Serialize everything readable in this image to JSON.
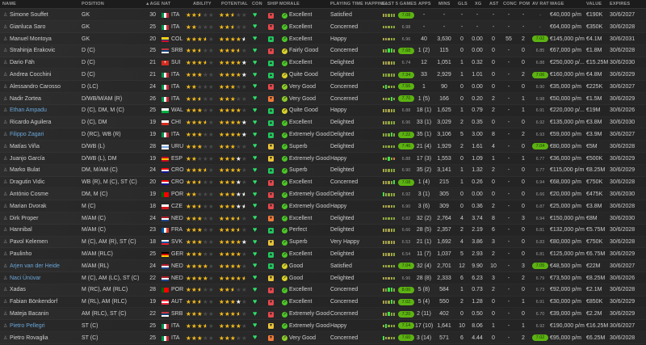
{
  "headers": {
    "name": "NAME",
    "position": "POSITION",
    "age": "▲AGE",
    "nat": "NAT",
    "ability": "ABILITY",
    "potential": "POTENTIAL",
    "con": "CON",
    "ship": "SHIP",
    "morale": "MORALE",
    "playing_time": "PLAYING TIME HAPPINE...",
    "last5": "LAST 5 GAMES",
    "apps": "APPS",
    "mins": "MINS",
    "gls": "GLS",
    "xg": "XG",
    "ast": "AST",
    "conc": "CONC",
    "pom": "POM",
    "avrat": "AV RAT",
    "wage": "WAGE",
    "value": "VALUE",
    "expires": "EXPIRES"
  },
  "colors": {
    "ship": {
      "green": "#22c55e",
      "red": "#e5484d",
      "orange": "#f07a3a",
      "yellow": "#e8c43a"
    },
    "morale": {
      "Excellent": "#4cc726",
      "Superb": "#4cc726",
      "Extremely Good": "#4cc726",
      "Perfect": "#4cc726",
      "Very Good": "#8fce2a",
      "Quite Good": "#d9d22a",
      "Good": "#d9d22a",
      "Fairly Good": "#d9d22a"
    },
    "star_gold": "#f2b816",
    "star_white": "#f0f0f0"
  },
  "players": [
    {
      "name": "Simone Souffet",
      "position": "GK",
      "age": "30",
      "nat": "ITA",
      "ability": 2.5,
      "potential": [
        2.5,
        2.5
      ],
      "ship": "red",
      "morale": "Excellent",
      "playing_time": "Satisfied",
      "form": "yyggg",
      "rating": "7.08",
      "apps": "-",
      "mins": "-",
      "gls": "-",
      "xg": "-",
      "ast": "-",
      "conc": "-",
      "pom": "-",
      "avrat": "-",
      "wage": "€40,000 p/m",
      "value": "€190K",
      "expires": "30/6/2027"
    },
    {
      "name": "Gianluca Saro",
      "position": "GK",
      "age": "25",
      "nat": "ITA",
      "ability": 2,
      "potential": [
        2.5,
        2.5
      ],
      "ship": "red",
      "morale": "Excellent",
      "playing_time": "Concerned",
      "form": "gyggg",
      "rating": "6.98",
      "apps": "-",
      "mins": "-",
      "gls": "-",
      "xg": "-",
      "ast": "-",
      "conc": "-",
      "pom": "-",
      "avrat": "-",
      "wage": "€64,000 p/m",
      "value": "€350K",
      "expires": "30/6/2028"
    },
    {
      "name": "Manuel Montoya",
      "position": "GK",
      "age": "20",
      "nat": "COL",
      "ability": 3.5,
      "potential": [
        4,
        4.5
      ],
      "ship": "green",
      "morale": "Excellent",
      "playing_time": "Happy",
      "form": "yyygg",
      "rating": "6.96",
      "apps": "40",
      "mins": "3,630",
      "gls": "0",
      "xg": "0.00",
      "ast": "0",
      "conc": "55",
      "pom": "2",
      "avrat": "7.02",
      "wage": "€145,000 p/m",
      "value": "€4.1M",
      "expires": "30/6/2031"
    },
    {
      "name": "Strahinja Erakovic",
      "position": "D (C)",
      "age": "25",
      "nat": "SRB",
      "ability": 2.5,
      "potential": [
        3.5,
        3.5
      ],
      "ship": "red",
      "morale": "Fairly Good",
      "playing_time": "Concerned",
      "form": "ggGGg",
      "rating": "7.68",
      "apps": "1 (2)",
      "mins": "115",
      "gls": "0",
      "xg": "0.00",
      "ast": "0",
      "conc": "-",
      "pom": "0",
      "avrat": "6.85",
      "wage": "€67,000 p/m",
      "value": "€1.8M",
      "expires": "30/6/2028"
    },
    {
      "name": "Dario Fäh",
      "position": "D (C)",
      "age": "21",
      "nat": "SUI",
      "ability": 3.5,
      "potential": [
        4,
        5
      ],
      "ship": "green",
      "morale": "Excellent",
      "playing_time": "Delighted",
      "form": "yyyyg",
      "rating": "6.74",
      "apps": "12",
      "mins": "1,051",
      "gls": "1",
      "xg": "0.32",
      "ast": "0",
      "conc": "-",
      "pom": "0",
      "avrat": "6.88",
      "wage": "€250,000 p/...",
      "value": "€15.25M",
      "expires": "30/6/2030"
    },
    {
      "name": "Andrea Cocchini",
      "position": "D (C)",
      "age": "21",
      "nat": "ITA",
      "ability": 3,
      "potential": [
        4,
        5
      ],
      "ship": "green",
      "morale": "Quite Good",
      "playing_time": "Delighted",
      "form": "ggggg",
      "rating": "7.34",
      "apps": "33",
      "mins": "2,929",
      "gls": "1",
      "xg": "1.01",
      "ast": "0",
      "conc": "-",
      "pom": "2",
      "avrat": "7.06",
      "wage": "€160,000 p/m",
      "value": "€4.8M",
      "expires": "30/6/2029"
    },
    {
      "name": "Alessandro Carosso",
      "position": "D (LC)",
      "age": "24",
      "nat": "ITA",
      "ability": 2,
      "potential": [
        3,
        3
      ],
      "ship": "red",
      "morale": "Very Good",
      "playing_time": "Concerned",
      "form": "gGggg",
      "rating": "7.56",
      "apps": "1",
      "mins": "90",
      "gls": "0",
      "xg": "0.00",
      "ast": "0",
      "conc": "-",
      "pom": "0",
      "avrat": "6.90",
      "wage": "€35,000 p/m",
      "value": "€225K",
      "expires": "30/6/2027"
    },
    {
      "name": "Nadir Zortea",
      "position": "D/WB/M/AM (R)",
      "age": "26",
      "nat": "ITA",
      "ability": 2.5,
      "potential": [
        3,
        3
      ],
      "ship": "orange",
      "morale": "Very Good",
      "playing_time": "Concerned",
      "form": "yggGg",
      "rating": "7.70",
      "apps": "1 (5)",
      "mins": "166",
      "gls": "0",
      "xg": "0.20",
      "ast": "2",
      "conc": "-",
      "pom": "1",
      "avrat": "6.98",
      "wage": "€50,000 p/m",
      "value": "€1.5M",
      "expires": "30/6/2029"
    },
    {
      "name": "Ethan Ampadu",
      "position": "D (C), DM, M (C)",
      "age": "25",
      "nat": "WAL",
      "ability": 3,
      "potential": [
        4,
        4
      ],
      "ship": "green",
      "morale": "Quite Good",
      "playing_time": "Happy",
      "form": "yyyyg",
      "rating": "6.88",
      "apps": "18 (1)",
      "mins": "1,625",
      "gls": "1",
      "xg": "0.79",
      "ast": "2",
      "conc": "-",
      "pom": "1",
      "avrat": "6.91",
      "wage": "€220,000 p/...",
      "value": "€19M",
      "expires": "30/6/2026",
      "link": true
    },
    {
      "name": "Ricardo Aguilera",
      "position": "D (C), DM",
      "age": "19",
      "nat": "CHI",
      "ability": 3.5,
      "potential": [
        4,
        5
      ],
      "ship": "green",
      "morale": "Excellent",
      "playing_time": "Delighted",
      "form": "yyggg",
      "rating": "6.96",
      "apps": "33 (1)",
      "mins": "3,029",
      "gls": "2",
      "xg": "0.35",
      "ast": "0",
      "conc": "-",
      "pom": "0",
      "avrat": "6.92",
      "wage": "€135,000 p/m",
      "value": "€3.8M",
      "expires": "30/6/2030"
    },
    {
      "name": "Filippo Zagari",
      "position": "D (RC), WB (R)",
      "age": "19",
      "nat": "ITA",
      "ability": 3,
      "potential": [
        4,
        5
      ],
      "ship": "green",
      "morale": "Extremely Good",
      "playing_time": "Delighted",
      "form": "gggGg",
      "rating": "7.22",
      "apps": "35 (1)",
      "mins": "3,106",
      "gls": "5",
      "xg": "3.00",
      "ast": "8",
      "conc": "-",
      "pom": "2",
      "avrat": "6.93",
      "wage": "€59,000 p/m",
      "value": "€3.9M",
      "expires": "30/6/2027",
      "link": true
    },
    {
      "name": "Matías Viña",
      "position": "D/WB (L)",
      "age": "28",
      "nat": "URU",
      "ability": 3,
      "potential": [
        3,
        3
      ],
      "ship": "yellow",
      "morale": "Superb",
      "playing_time": "Delighted",
      "form": "ggggg",
      "rating": "7.46",
      "apps": "21 (4)",
      "mins": "1,929",
      "gls": "2",
      "xg": "1.61",
      "ast": "4",
      "conc": "-",
      "pom": "0",
      "avrat": "7.04",
      "wage": "€80,000 p/m",
      "value": "€5M",
      "expires": "30/6/2028"
    },
    {
      "name": "Juanjo García",
      "position": "D/WB (L), DM",
      "age": "19",
      "nat": "ESP",
      "ability": 2,
      "potential": [
        3,
        4
      ],
      "ship": "yellow",
      "morale": "Extremely Good",
      "playing_time": "Happy",
      "form": "ygGgo",
      "rating": "6.88",
      "apps": "17 (3)",
      "mins": "1,553",
      "gls": "0",
      "xg": "1.09",
      "ast": "1",
      "conc": "-",
      "pom": "1",
      "avrat": "6.77",
      "wage": "€36,000 p/m",
      "value": "€500K",
      "expires": "30/6/2029"
    },
    {
      "name": "Marko Bulat",
      "position": "DM, M/AM (C)",
      "age": "24",
      "nat": "CRO",
      "ability": 3.5,
      "potential": [
        4,
        4
      ],
      "ship": "green",
      "morale": "Superb",
      "playing_time": "Delighted",
      "form": "yyggg",
      "rating": "6.90",
      "apps": "35 (2)",
      "mins": "3,141",
      "gls": "1",
      "xg": "1.32",
      "ast": "2",
      "conc": "-",
      "pom": "0",
      "avrat": "6.77",
      "wage": "€115,000 p/m",
      "value": "€8.25M",
      "expires": "30/6/2029"
    },
    {
      "name": "Dragutin Vidic",
      "position": "WB (R), M (C), ST (C)",
      "age": "20",
      "nat": "CRO",
      "ability": 2.5,
      "potential": [
        3,
        4
      ],
      "ship": "red",
      "morale": "Excellent",
      "playing_time": "Concerned",
      "form": "yyygG",
      "rating": "7.08",
      "apps": "1 (4)",
      "mins": "215",
      "gls": "1",
      "xg": "0.26",
      "ast": "0",
      "conc": "-",
      "pom": "0",
      "avrat": "6.94",
      "wage": "€68,000 p/m",
      "value": "€750K",
      "expires": "30/6/2028"
    },
    {
      "name": "António Cosme",
      "position": "DM, M (C)",
      "age": "19",
      "nat": "POR",
      "ability": 2,
      "potential": [
        3,
        4.5
      ],
      "ship": "red",
      "morale": "Extremely Good",
      "playing_time": "Delighted",
      "form": "Gyggg",
      "rating": "6.92",
      "apps": "3 (1)",
      "mins": "305",
      "gls": "0",
      "xg": "0.00",
      "ast": "0",
      "conc": "-",
      "pom": "0",
      "avrat": "6.66",
      "wage": "€20,000 p/m",
      "value": "€475K",
      "expires": "30/6/2030"
    },
    {
      "name": "Marian Dvorak",
      "position": "M (C)",
      "age": "18",
      "nat": "CZE",
      "ability": 2.5,
      "potential": [
        3,
        4.5
      ],
      "ship": "red",
      "morale": "Extremely Good",
      "playing_time": "Happy",
      "form": "yyyyg",
      "rating": "6.90",
      "apps": "3 (6)",
      "mins": "309",
      "gls": "0",
      "xg": "0.36",
      "ast": "2",
      "conc": "-",
      "pom": "0",
      "avrat": "6.87",
      "wage": "€25,000 p/m",
      "value": "€3.8M",
      "expires": "30/6/2028"
    },
    {
      "name": "Dirk Proper",
      "position": "M/AM (C)",
      "age": "24",
      "nat": "NED",
      "ability": 3,
      "potential": [
        3.5,
        3.5
      ],
      "ship": "orange",
      "morale": "Excellent",
      "playing_time": "Delighted",
      "form": "ggggg",
      "rating": "6.82",
      "apps": "32 (2)",
      "mins": "2,764",
      "gls": "4",
      "xg": "3.74",
      "ast": "8",
      "conc": "-",
      "pom": "3",
      "avrat": "6.94",
      "wage": "€150,000 p/m",
      "value": "€8M",
      "expires": "30/6/2030"
    },
    {
      "name": "Hannibal",
      "position": "M/AM (C)",
      "age": "23",
      "nat": "FRA",
      "ability": 3,
      "potential": [
        3.5,
        3.5
      ],
      "ship": "green",
      "morale": "Perfect",
      "playing_time": "Delighted",
      "form": "yyyyg",
      "rating": "6.66",
      "apps": "28 (5)",
      "mins": "2,357",
      "gls": "2",
      "xg": "2.19",
      "ast": "6",
      "conc": "-",
      "pom": "0",
      "avrat": "6.81",
      "wage": "€132,000 p/m",
      "value": "€5.75M",
      "expires": "30/6/2028"
    },
    {
      "name": "Pavol Kelemen",
      "position": "M (C), AM (R), ST (C)",
      "age": "18",
      "nat": "SVK",
      "ability": 3,
      "potential": [
        4,
        5
      ],
      "ship": "yellow",
      "morale": "Superb",
      "playing_time": "Very Happy",
      "form": "yyyyy",
      "rating": "6.53",
      "apps": "21 (1)",
      "mins": "1,692",
      "gls": "4",
      "xg": "3.86",
      "ast": "3",
      "conc": "-",
      "pom": "0",
      "avrat": "6.83",
      "wage": "€80,000 p/m",
      "value": "€750K",
      "expires": "30/6/2028"
    },
    {
      "name": "Paulinho",
      "position": "M/AM (RLC)",
      "age": "25",
      "nat": "GER",
      "ability": 3,
      "potential": [
        4,
        4
      ],
      "ship": "green",
      "morale": "Excellent",
      "playing_time": "Delighted",
      "form": "yyyyg",
      "rating": "6.54",
      "apps": "11 (7)",
      "mins": "1,037",
      "gls": "5",
      "xg": "2.93",
      "ast": "2",
      "conc": "-",
      "pom": "0",
      "avrat": "6.81",
      "wage": "€125,000 p/m",
      "value": "€6.75M",
      "expires": "30/6/2029"
    },
    {
      "name": "Arjen van der Heide",
      "position": "M/AM (RL)",
      "age": "24",
      "nat": "NED",
      "ability": 4,
      "potential": [
        4,
        4
      ],
      "ship": "green",
      "morale": "Good",
      "playing_time": "Satisfied",
      "form": "gyggg",
      "rating": "7.04",
      "apps": "32 (4)",
      "mins": "2,701",
      "gls": "12",
      "xg": "9.90",
      "ast": "10",
      "conc": "-",
      "pom": "3",
      "avrat": "7.05",
      "wage": "€48,500 p/m",
      "value": "€22M",
      "expires": "30/6/2027",
      "link": true
    },
    {
      "name": "Naci Ünüvar",
      "position": "M (C), AM (LC), ST (C)",
      "age": "22",
      "nat": "NED",
      "ability": 4,
      "potential": [
        4.5,
        4.5
      ],
      "ship": "yellow",
      "morale": "Good",
      "playing_time": "Delighted",
      "form": "yyyyg",
      "rating": "6.96",
      "apps": "28 (8)",
      "mins": "2,333",
      "gls": "6",
      "xg": "6.23",
      "ast": "3",
      "conc": "-",
      "pom": "2",
      "avrat": "6.79",
      "wage": "€73,500 p/m",
      "value": "€8.25M",
      "expires": "30/6/2026",
      "link": true
    },
    {
      "name": "Xadas",
      "position": "M (RC), AM (RLC)",
      "age": "28",
      "nat": "POR",
      "ability": 2.5,
      "potential": [
        2.5,
        2.5
      ],
      "ship": "red",
      "morale": "Excellent",
      "playing_time": "Concerned",
      "form": "ygGGg",
      "rating": "8.00",
      "apps": "5 (8)",
      "mins": "584",
      "gls": "1",
      "xg": "0.73",
      "ast": "2",
      "conc": "-",
      "pom": "0",
      "avrat": "6.73",
      "wage": "€92,000 p/m",
      "value": "€2.1M",
      "expires": "30/6/2028"
    },
    {
      "name": "Fabian Bönkendorf",
      "position": "M (RL), AM (RLC)",
      "age": "19",
      "nat": "AUT",
      "ability": 2.5,
      "potential": [
        3,
        4
      ],
      "ship": "red",
      "morale": "Excellent",
      "playing_time": "Concerned",
      "form": "yyyGg",
      "rating": "7.02",
      "apps": "5 (4)",
      "mins": "550",
      "gls": "2",
      "xg": "1.28",
      "ast": "0",
      "conc": "-",
      "pom": "1",
      "avrat": "6.91",
      "wage": "€30,000 p/m",
      "value": "€850K",
      "expires": "30/6/2029"
    },
    {
      "name": "Mateja Bacanin",
      "position": "AM (RLC), ST (C)",
      "age": "22",
      "nat": "SRB",
      "ability": 3,
      "potential": [
        3.5,
        3.5
      ],
      "ship": "red",
      "morale": "Extremely Good",
      "playing_time": "Concerned",
      "form": "yyGgg",
      "rating": "7.20",
      "apps": "2 (11)",
      "mins": "402",
      "gls": "0",
      "xg": "0.50",
      "ast": "0",
      "conc": "-",
      "pom": "0",
      "avrat": "6.70",
      "wage": "€39,000 p/m",
      "value": "€2.2M",
      "expires": "30/6/2029"
    },
    {
      "name": "Pietro Pellegri",
      "position": "ST (C)",
      "age": "25",
      "nat": "ITA",
      "ability": 3.5,
      "potential": [
        4,
        4
      ],
      "ship": "yellow",
      "morale": "Extremely Good",
      "playing_time": "Happy",
      "form": "yGggg",
      "rating": "7.14",
      "apps": "17 (10)",
      "mins": "1,641",
      "gls": "10",
      "xg": "8.06",
      "ast": "1",
      "conc": "-",
      "pom": "1",
      "avrat": "6.92",
      "wage": "€190,000 p/m",
      "value": "€16.25M",
      "expires": "30/6/2027",
      "link": true
    },
    {
      "name": "Pietro Rovaglia",
      "position": "ST (C)",
      "age": "25",
      "nat": "ITA",
      "ability": 3,
      "potential": [
        3,
        3
      ],
      "ship": "orange",
      "morale": "Very Good",
      "playing_time": "Concerned",
      "form": "Gyygg",
      "rating": "7.60",
      "apps": "3 (14)",
      "mins": "571",
      "gls": "6",
      "xg": "4.44",
      "ast": "0",
      "conc": "-",
      "pom": "2",
      "avrat": "7.02",
      "wage": "€95,000 p/m",
      "value": "€6.25M",
      "expires": "30/6/2028"
    }
  ]
}
